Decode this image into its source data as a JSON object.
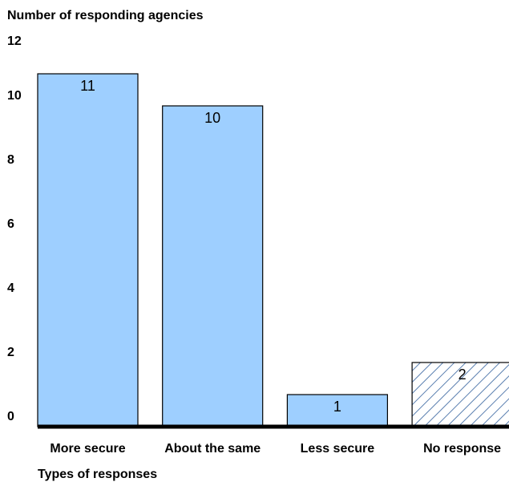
{
  "chart_data": {
    "type": "bar",
    "title": "Number of responding agencies",
    "x_label": "Types of responses",
    "categories": [
      "More secure",
      "About the same",
      "Less secure",
      "No response"
    ],
    "values": [
      11,
      10,
      1,
      2
    ],
    "color": "#9ecfff",
    "hatched": [
      false,
      false,
      false,
      true
    ],
    "ylim": [
      0,
      12
    ],
    "yticks": [
      0,
      2,
      4,
      6,
      8,
      10,
      12
    ]
  }
}
